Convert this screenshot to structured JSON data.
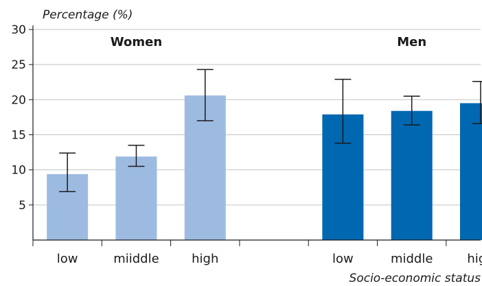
{
  "chart_data": {
    "type": "bar",
    "ylabel": "Percentage (%)",
    "xlabel": "Socio-economic status",
    "ylim": [
      0,
      30
    ],
    "yticks": [
      5,
      10,
      15,
      20,
      25,
      30
    ],
    "grid": true,
    "groups": [
      {
        "name": "Women",
        "color": "#9dbbe0",
        "categories": [
          "low",
          "miiddle",
          "high"
        ],
        "values": [
          9.4,
          11.9,
          20.6
        ],
        "error_low": [
          6.9,
          10.5,
          17.0
        ],
        "error_high": [
          12.4,
          13.5,
          24.3
        ]
      },
      {
        "name": "Men",
        "color": "#0067b1",
        "categories": [
          "low",
          "middle",
          "high"
        ],
        "values": [
          17.9,
          18.4,
          19.5
        ],
        "error_low": [
          13.8,
          16.4,
          16.6
        ],
        "error_high": [
          22.9,
          20.5,
          22.6
        ]
      }
    ]
  }
}
